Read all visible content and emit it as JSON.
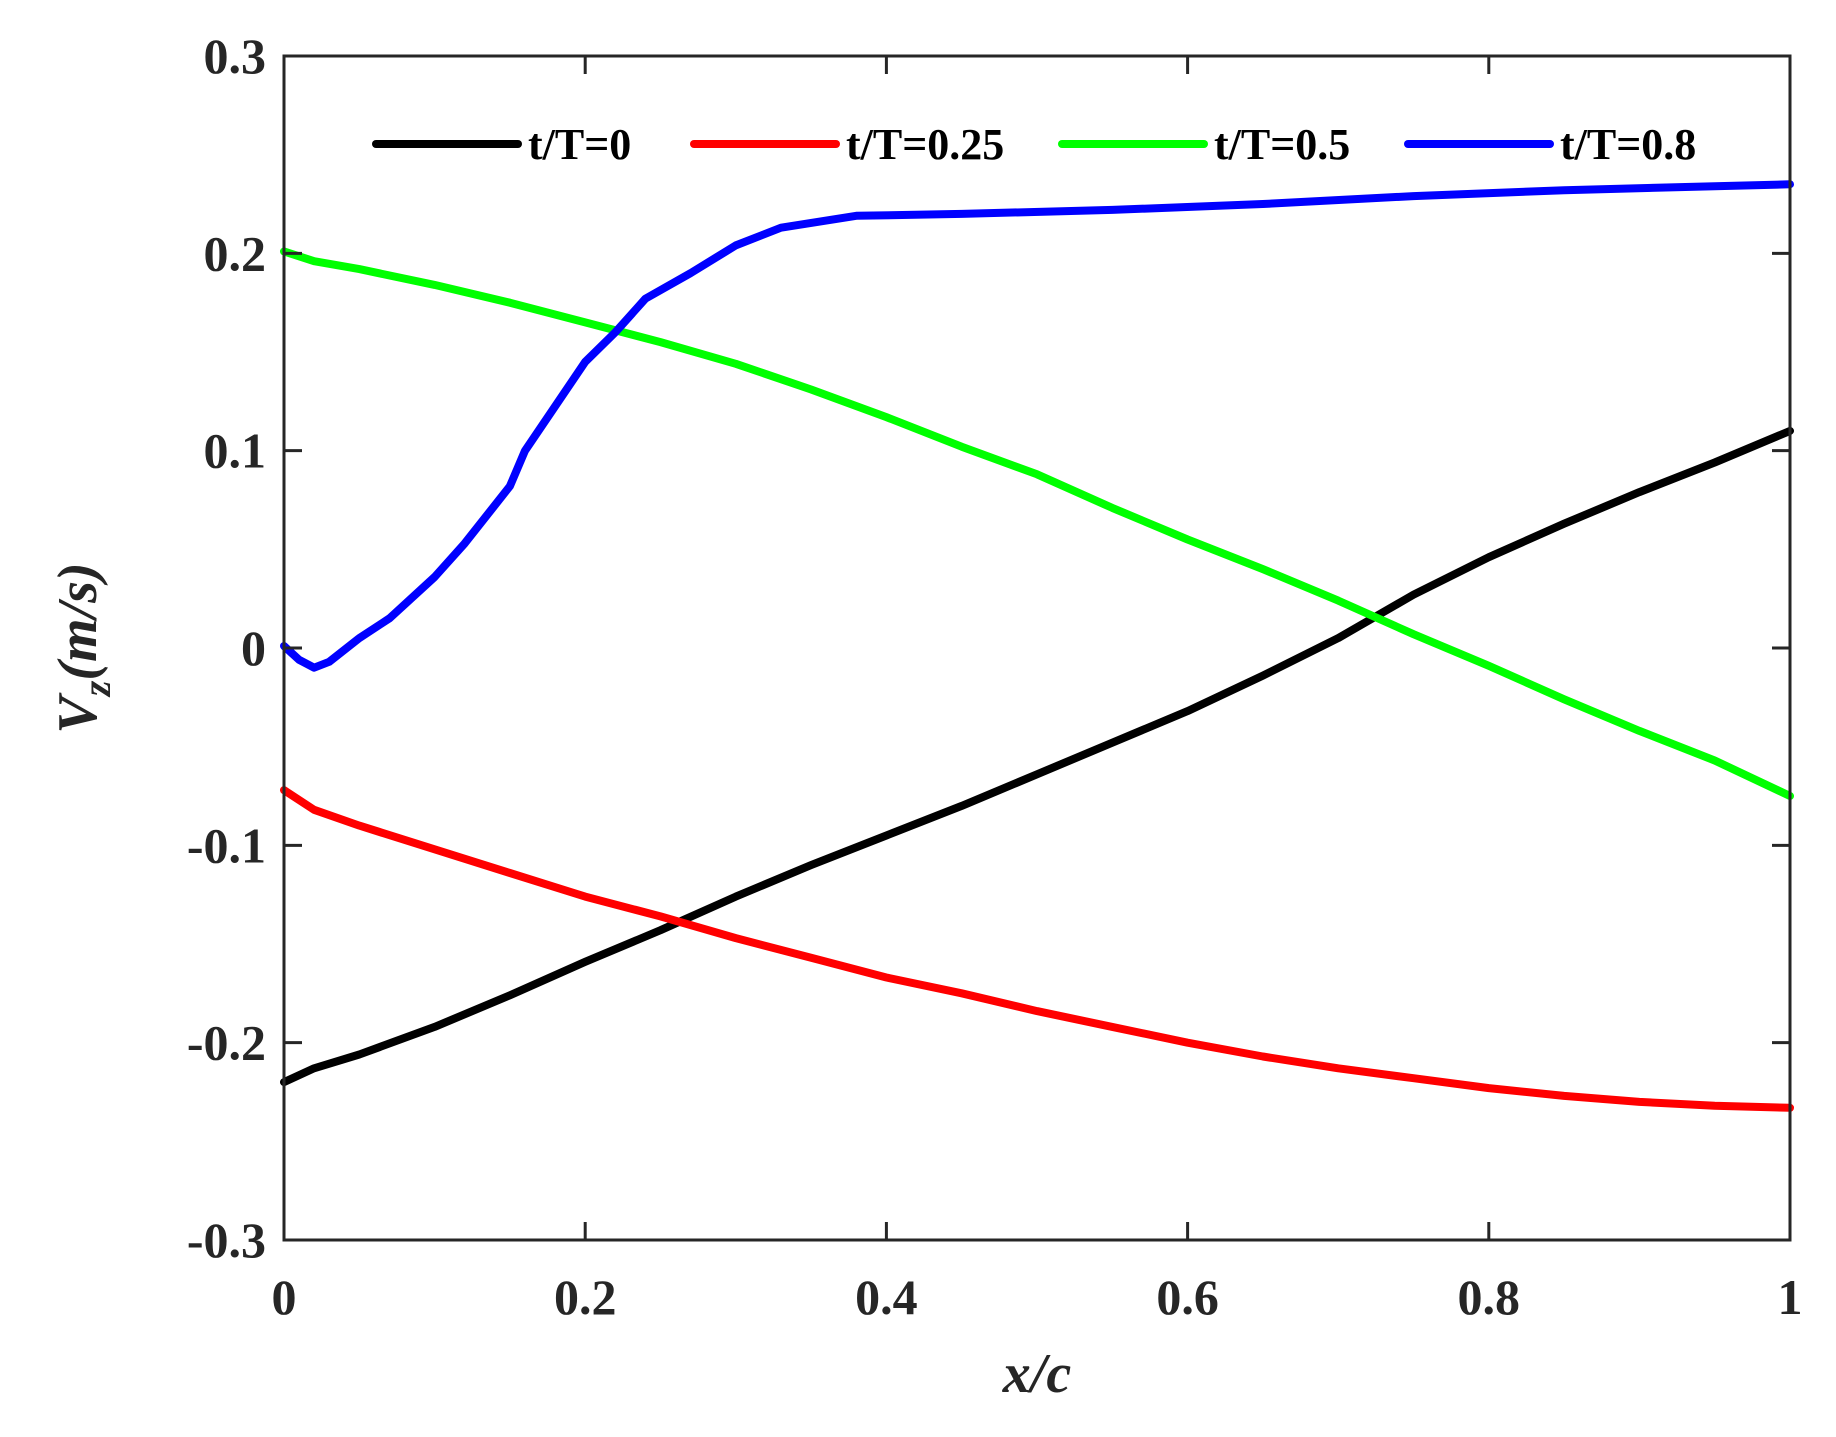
{
  "chart_data": {
    "type": "line",
    "xlabel": "x/c",
    "ylabel_main": "V",
    "ylabel_sub": "z",
    "ylabel_unit": "(m/s)",
    "xlim": [
      0,
      1
    ],
    "ylim": [
      -0.3,
      0.3
    ],
    "xticks": [
      0,
      0.2,
      0.4,
      0.6,
      0.8,
      1
    ],
    "xtick_labels": [
      "0",
      "0.2",
      "0.4",
      "0.6",
      "0.8",
      "1"
    ],
    "yticks": [
      -0.3,
      -0.2,
      -0.1,
      0,
      0.1,
      0.2,
      0.3
    ],
    "ytick_labels": [
      "-0.3",
      "-0.2",
      "-0.1",
      "0",
      "0.1",
      "0.2",
      "0.3"
    ],
    "grid": false,
    "legend_position": "top",
    "series": [
      {
        "name": "t/T=0",
        "color": "#000000",
        "x": [
          0,
          0.02,
          0.05,
          0.1,
          0.15,
          0.2,
          0.25,
          0.3,
          0.35,
          0.4,
          0.45,
          0.5,
          0.55,
          0.6,
          0.65,
          0.7,
          0.75,
          0.8,
          0.85,
          0.9,
          0.95,
          1.0
        ],
        "y": [
          -0.22,
          -0.213,
          -0.206,
          -0.192,
          -0.176,
          -0.159,
          -0.143,
          -0.126,
          -0.11,
          -0.095,
          -0.08,
          -0.064,
          -0.048,
          -0.032,
          -0.014,
          0.005,
          0.027,
          0.046,
          0.063,
          0.079,
          0.094,
          0.11
        ]
      },
      {
        "name": "t/T=0.25",
        "color": "#ff0000",
        "x": [
          0,
          0.02,
          0.05,
          0.1,
          0.15,
          0.2,
          0.25,
          0.3,
          0.35,
          0.4,
          0.45,
          0.5,
          0.55,
          0.6,
          0.65,
          0.7,
          0.75,
          0.8,
          0.85,
          0.9,
          0.95,
          1.0
        ],
        "y": [
          -0.072,
          -0.082,
          -0.09,
          -0.102,
          -0.114,
          -0.126,
          -0.136,
          -0.147,
          -0.157,
          -0.167,
          -0.175,
          -0.184,
          -0.192,
          -0.2,
          -0.207,
          -0.213,
          -0.218,
          -0.223,
          -0.227,
          -0.23,
          -0.232,
          -0.233
        ]
      },
      {
        "name": "t/T=0.5",
        "color": "#00ff00",
        "x": [
          0,
          0.02,
          0.05,
          0.1,
          0.15,
          0.2,
          0.25,
          0.3,
          0.35,
          0.4,
          0.45,
          0.5,
          0.55,
          0.6,
          0.65,
          0.7,
          0.75,
          0.8,
          0.85,
          0.9,
          0.95,
          1.0
        ],
        "y": [
          0.201,
          0.196,
          0.192,
          0.184,
          0.175,
          0.165,
          0.155,
          0.144,
          0.131,
          0.117,
          0.102,
          0.088,
          0.071,
          0.055,
          0.04,
          0.024,
          0.007,
          -0.009,
          -0.026,
          -0.042,
          -0.057,
          -0.075
        ]
      },
      {
        "name": "t/T=0.8",
        "color": "#0000ff",
        "x": [
          0,
          0.01,
          0.02,
          0.03,
          0.05,
          0.07,
          0.1,
          0.12,
          0.15,
          0.16,
          0.2,
          0.22,
          0.24,
          0.27,
          0.3,
          0.33,
          0.38,
          0.45,
          0.55,
          0.65,
          0.75,
          0.85,
          0.95,
          1.0
        ],
        "y": [
          0.001,
          -0.006,
          -0.01,
          -0.007,
          0.005,
          0.015,
          0.036,
          0.053,
          0.082,
          0.1,
          0.145,
          0.16,
          0.177,
          0.19,
          0.204,
          0.213,
          0.219,
          0.22,
          0.222,
          0.225,
          0.229,
          0.232,
          0.234,
          0.235
        ]
      }
    ]
  }
}
